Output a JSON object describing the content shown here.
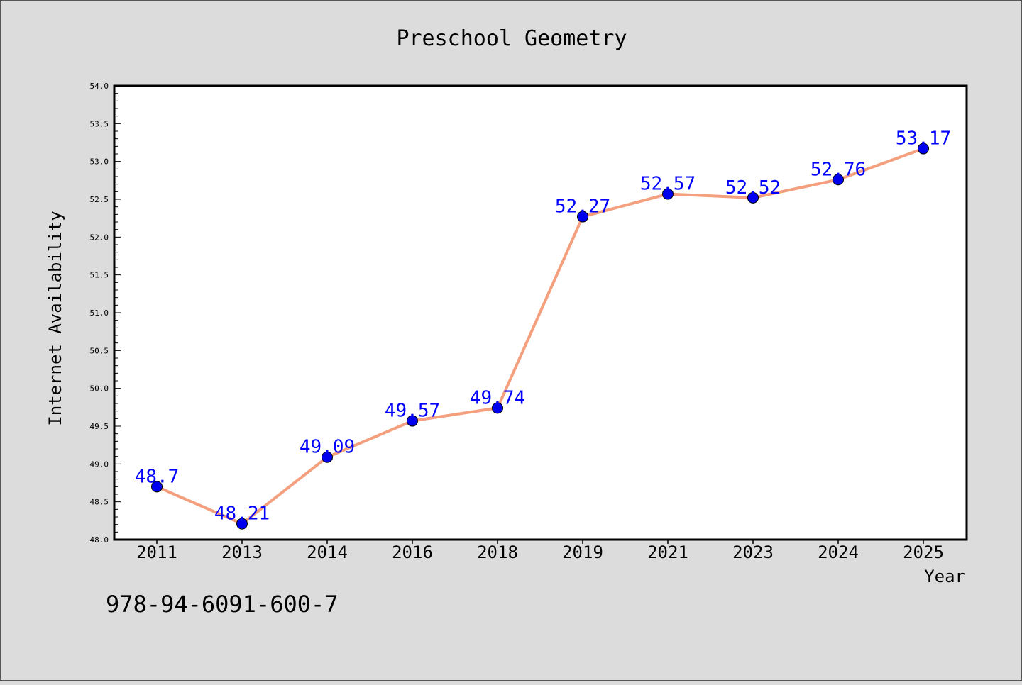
{
  "chart_data": {
    "type": "line",
    "title": "Preschool Geometry",
    "xlabel": "Year",
    "ylabel": "Internet Availability",
    "categories": [
      "2011",
      "2013",
      "2014",
      "2016",
      "2018",
      "2019",
      "2021",
      "2023",
      "2024",
      "2025"
    ],
    "values": [
      48.7,
      48.21,
      49.09,
      49.57,
      49.74,
      52.27,
      52.57,
      52.52,
      52.76,
      53.17
    ],
    "value_labels": [
      "48.7",
      "48.21",
      "49.09",
      "49.57",
      "49.74",
      "52.27",
      "52.57",
      "52.52",
      "52.76",
      "53.17"
    ],
    "ylim": [
      48.0,
      54.0
    ],
    "yticks": [
      "48.0",
      "48.5",
      "49.0",
      "49.5",
      "50.0",
      "50.5",
      "51.0",
      "51.5",
      "52.0",
      "52.5",
      "53.0",
      "53.5",
      "54.0"
    ],
    "grid": false,
    "legend": "none",
    "colors": {
      "line": "#f4a07e",
      "marker": "#0000ee",
      "label": "#0000ff",
      "plot_bg": "#ffffff",
      "page_bg": "#dcdcdc"
    }
  },
  "footer": {
    "isbn": "978-94-6091-600-7"
  }
}
